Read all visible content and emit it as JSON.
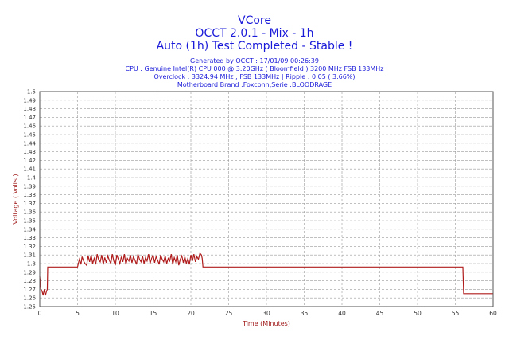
{
  "chart_data": {
    "type": "line",
    "title": "VCore",
    "subtitle_lines": [
      "OCCT 2.0.1 - Mix - 1h",
      "Auto (1h) Test Completed - Stable !"
    ],
    "info_lines": [
      "Generated by OCCT : 17/01/09 00:26:39",
      "CPU : Genuine Intel(R) CPU 000 @ 3.20GHz ( Bloomfield ) 3200 MHz FSB 133MHz",
      "Overclock : 3324.94 MHz ; FSB 133MHz | Ripple : 0.05 ( 3.66%)",
      "Motherboard Brand :Foxconn,Serie :BLOODRAGE"
    ],
    "xlabel": "Time (Minutes)",
    "ylabel": "Voltage ( Volts )",
    "xlim": [
      0,
      60
    ],
    "ylim": [
      1.25,
      1.5
    ],
    "x_ticks": [
      0,
      5,
      10,
      15,
      20,
      25,
      30,
      35,
      40,
      45,
      50,
      55,
      60
    ],
    "x_tick_labels": [
      "0",
      "5",
      "10",
      "15",
      "20",
      "25",
      "30",
      "35",
      "40",
      "45",
      "50",
      "55",
      "60"
    ],
    "y_ticks": [
      1.25,
      1.26,
      1.27,
      1.28,
      1.29,
      1.3,
      1.31,
      1.32,
      1.33,
      1.34,
      1.35,
      1.36,
      1.37,
      1.38,
      1.39,
      1.4,
      1.41,
      1.42,
      1.43,
      1.44,
      1.45,
      1.46,
      1.47,
      1.48,
      1.49,
      1.5
    ],
    "y_tick_labels": [
      "1.25",
      "1.26",
      "1.27",
      "1.28",
      "1.29",
      "1.3",
      "1.31",
      "1.32",
      "1.33",
      "1.34",
      "1.35",
      "1.36",
      "1.37",
      "1.38",
      "1.39",
      "1.4",
      "1.41",
      "1.42",
      "1.43",
      "1.44",
      "1.45",
      "1.46",
      "1.47",
      "1.48",
      "1.49",
      "1.5"
    ],
    "grid": true,
    "colors": {
      "title": "#1a1ad9",
      "axis_label": "#a01818",
      "series": "#b01c1c",
      "grid": "#9a9a9a",
      "plot_bg": "#ffffff",
      "axes": "#555555"
    },
    "series": [
      {
        "x": [
          0,
          0.15,
          0.3,
          0.45,
          0.6,
          0.75,
          0.9,
          1.0,
          1.05,
          5.0,
          5.1,
          5.25,
          5.45,
          5.6,
          5.8,
          6.0,
          6.2,
          6.4,
          6.6,
          6.8,
          7.0,
          7.2,
          7.4,
          7.6,
          7.8,
          8.0,
          8.2,
          8.4,
          8.6,
          8.8,
          9.0,
          9.2,
          9.4,
          9.6,
          9.8,
          10.0,
          10.2,
          10.4,
          10.6,
          10.8,
          11.0,
          11.2,
          11.4,
          11.6,
          11.8,
          12.0,
          12.2,
          12.4,
          12.6,
          12.8,
          13.0,
          13.2,
          13.4,
          13.6,
          13.8,
          14.0,
          14.2,
          14.4,
          14.6,
          14.8,
          15.0,
          15.2,
          15.4,
          15.6,
          15.8,
          16.0,
          16.2,
          16.4,
          16.6,
          16.8,
          17.0,
          17.2,
          17.4,
          17.6,
          17.8,
          18.0,
          18.2,
          18.4,
          18.6,
          18.8,
          19.0,
          19.2,
          19.4,
          19.6,
          19.8,
          20.0,
          20.2,
          20.4,
          20.6,
          20.8,
          21.0,
          21.2,
          21.4,
          21.5,
          21.6,
          56.0,
          56.1,
          60.0
        ],
        "y": [
          1.285,
          1.27,
          1.268,
          1.263,
          1.27,
          1.263,
          1.268,
          1.27,
          1.296,
          1.296,
          1.3,
          1.305,
          1.299,
          1.308,
          1.303,
          1.3,
          1.298,
          1.309,
          1.302,
          1.31,
          1.3,
          1.306,
          1.299,
          1.311,
          1.304,
          1.302,
          1.31,
          1.299,
          1.307,
          1.301,
          1.309,
          1.304,
          1.3,
          1.311,
          1.303,
          1.298,
          1.31,
          1.305,
          1.3,
          1.308,
          1.302,
          1.311,
          1.299,
          1.306,
          1.303,
          1.31,
          1.301,
          1.308,
          1.304,
          1.299,
          1.311,
          1.305,
          1.302,
          1.309,
          1.3,
          1.307,
          1.303,
          1.311,
          1.3,
          1.306,
          1.31,
          1.301,
          1.308,
          1.304,
          1.299,
          1.31,
          1.305,
          1.302,
          1.309,
          1.3,
          1.306,
          1.303,
          1.311,
          1.299,
          1.307,
          1.302,
          1.31,
          1.298,
          1.305,
          1.309,
          1.301,
          1.308,
          1.3,
          1.306,
          1.299,
          1.31,
          1.303,
          1.311,
          1.302,
          1.308,
          1.305,
          1.312,
          1.31,
          1.306,
          1.296,
          1.296,
          1.265,
          1.265
        ]
      }
    ]
  }
}
